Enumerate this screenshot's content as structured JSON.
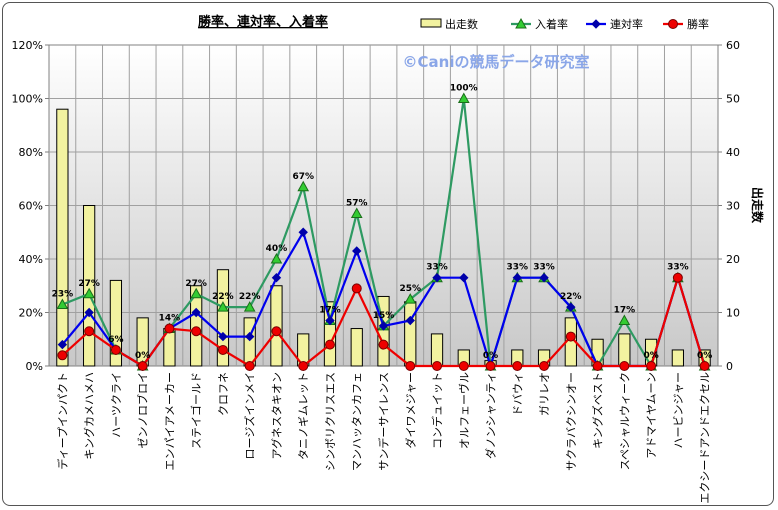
{
  "chart_data": {
    "type": "bar",
    "title": "勝率、連対率、入着率",
    "watermark": "©Caniの競馬データ研究室",
    "xlabel": "",
    "ylabel": "",
    "y2label": "出走数",
    "ylim": [
      0,
      120
    ],
    "y2lim": [
      0,
      60
    ],
    "yticks": [
      "0%",
      "20%",
      "40%",
      "60%",
      "80%",
      "100%",
      "120%"
    ],
    "y2ticks": [
      "0",
      "10",
      "20",
      "30",
      "40",
      "50",
      "60"
    ],
    "grid": true,
    "legend_position": "top-right",
    "categories": [
      "ディープインパクト",
      "キングカメハメハ",
      "ハーツクライ",
      "ゼンノロブロイ",
      "エンパイアメーカー",
      "ステイゴールド",
      "クロフネ",
      "ロージズインメイ",
      "アグネスタキオン",
      "タニノギムレット",
      "シンボリクリスエス",
      "マンハッタンカフェ",
      "サンデーサイレンス",
      "ダイワメジャー",
      "コンデュイット",
      "オルフェーヴル",
      "ダノンシャンティ",
      "ドバウィ",
      "ガリレオ",
      "サクラバクシンオー",
      "キングズベスト",
      "スペシャルウィーク",
      "アドマイヤムーン",
      "ハービンジャー",
      "エクシードアンドエクセル"
    ],
    "series": [
      {
        "name": "出走数",
        "kind": "bar",
        "axis": "right",
        "color": "#f2f2a0",
        "values": [
          48,
          30,
          16,
          9,
          7,
          15,
          18,
          9,
          15,
          6,
          12,
          7,
          13,
          12,
          6,
          3,
          1,
          3,
          3,
          9,
          5,
          6,
          5,
          3,
          3
        ]
      },
      {
        "name": "入着率",
        "kind": "line",
        "axis": "left",
        "color": "#2e9a62",
        "marker": "triangle",
        "marker_color": "#33cc33",
        "values": [
          23,
          27,
          6,
          0,
          14,
          27,
          22,
          22,
          40,
          67,
          17,
          57,
          15,
          25,
          33,
          100,
          0,
          33,
          33,
          22,
          0,
          17,
          0,
          33,
          0
        ],
        "labels": [
          "23%",
          "27%",
          "6%",
          "0%",
          "14%",
          "27%",
          "22%",
          "22%",
          "40%",
          "67%",
          "17%",
          "57%",
          "15%",
          "25%",
          "33%",
          "100%",
          "0%",
          "33%",
          "33%",
          "22%",
          "",
          "17%",
          "0%",
          "33%",
          "0%"
        ]
      },
      {
        "name": "連対率",
        "kind": "line",
        "axis": "left",
        "color": "#0000ee",
        "marker": "diamond",
        "marker_color": "#0000aa",
        "values": [
          8,
          20,
          6,
          0,
          14,
          20,
          11,
          11,
          33,
          50,
          17,
          43,
          15,
          17,
          33,
          33,
          0,
          33,
          33,
          22,
          0,
          0,
          0,
          33,
          0
        ]
      },
      {
        "name": "勝率",
        "kind": "line",
        "axis": "left",
        "color": "#ee0000",
        "marker": "circle",
        "marker_color": "#ee0000",
        "values": [
          4,
          13,
          6,
          0,
          14,
          13,
          6,
          0,
          13,
          0,
          8,
          29,
          8,
          0,
          0,
          0,
          0,
          0,
          0,
          11,
          0,
          0,
          0,
          33,
          0
        ]
      }
    ]
  }
}
